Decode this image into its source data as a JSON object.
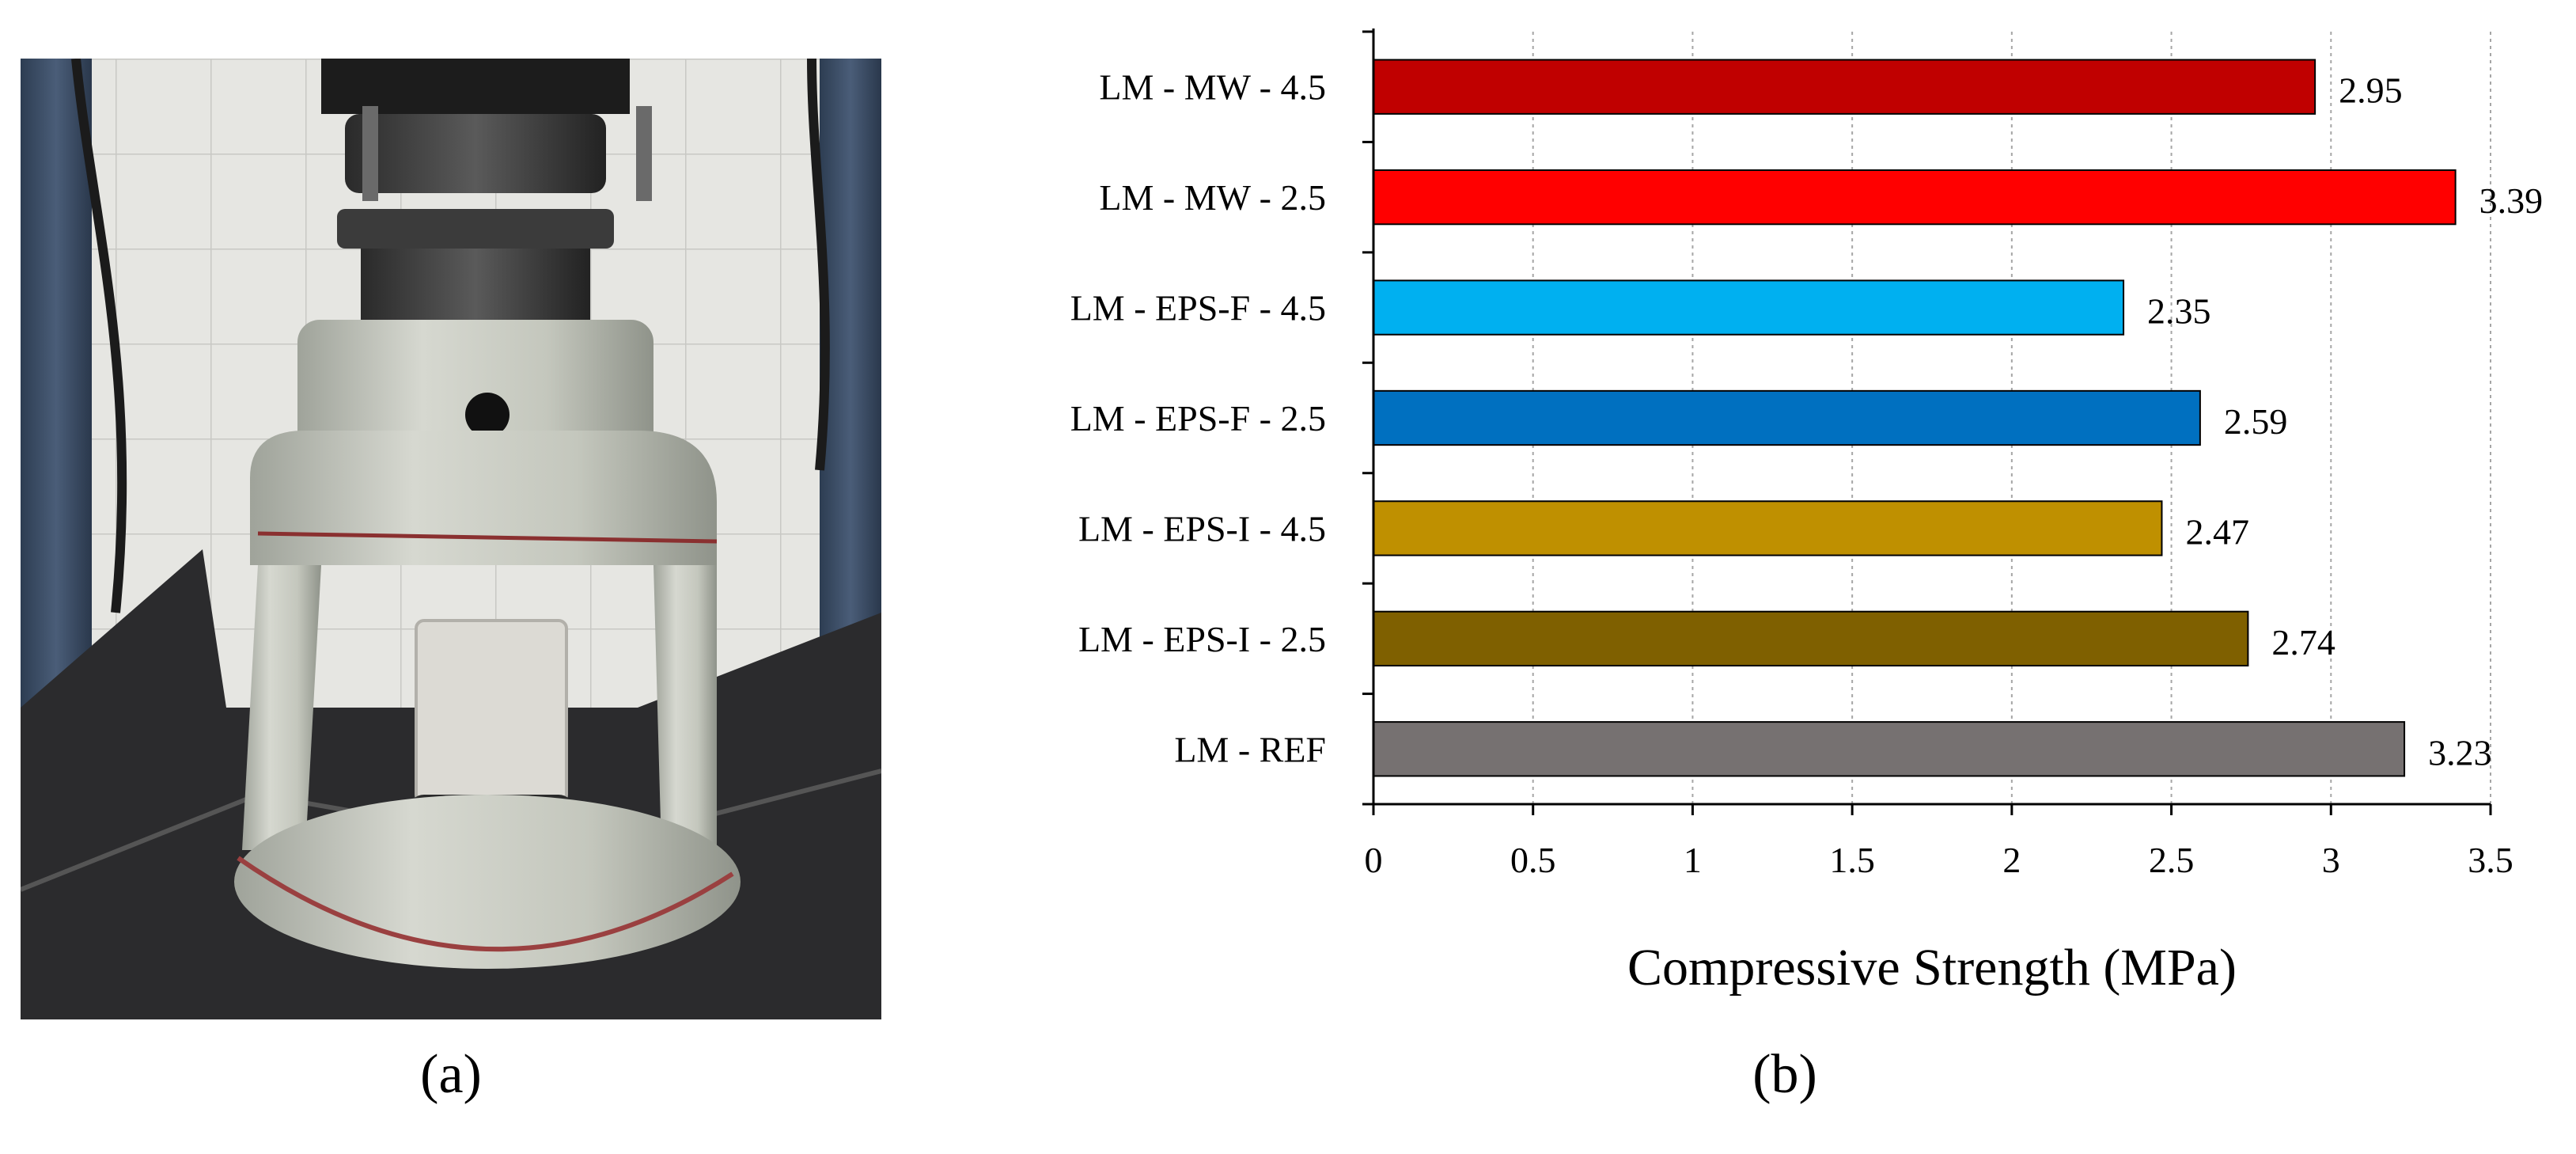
{
  "figure": {
    "caption_a": "(a)",
    "caption_b": "(b)"
  },
  "photo": {
    "subject": "flexural / compressive test jig in load frame"
  },
  "chart_data": {
    "type": "bar",
    "orientation": "horizontal",
    "categories": [
      "LM - MW - 4.5",
      "LM - MW - 2.5",
      "LM - EPS-F - 4.5",
      "LM - EPS-F - 2.5",
      "LM - EPS-I - 4.5",
      "LM - EPS-I - 2.5",
      "LM - REF"
    ],
    "values": [
      2.95,
      3.39,
      2.35,
      2.59,
      2.47,
      2.74,
      3.23
    ],
    "value_labels": [
      "2.95",
      "3.39",
      "2.35",
      "2.59",
      "2.47",
      "2.74",
      "3.23"
    ],
    "colors": [
      "#c00000",
      "#ff0000",
      "#00b0f0",
      "#0070c0",
      "#bf9000",
      "#7f6000",
      "#767171"
    ],
    "title": "",
    "xlabel": "Compressive Strength (MPa)",
    "ylabel": "",
    "xlim": [
      0,
      3.5
    ],
    "xticks": [
      0,
      0.5,
      1,
      1.5,
      2,
      2.5,
      3,
      3.5
    ],
    "xtick_labels": [
      "0",
      "0.5",
      "1",
      "1.5",
      "2",
      "2.5",
      "3",
      "3.5"
    ],
    "grid": "vertical dotted",
    "legend": "none"
  }
}
